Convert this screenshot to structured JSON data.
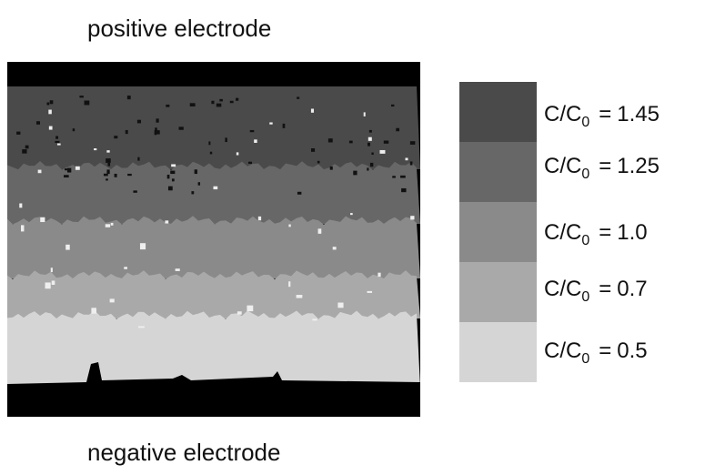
{
  "top_label": "positive electrode",
  "bottom_label": "negative electrode",
  "legend": {
    "items": [
      {
        "numerator": "C/C",
        "subscript": "0",
        "equals": "=",
        "value": "1.45",
        "color": "#4a4a4a"
      },
      {
        "numerator": "C/C",
        "subscript": "0",
        "equals": "=",
        "value": "1.25",
        "color": "#676767"
      },
      {
        "numerator": "C/C",
        "subscript": "0",
        "equals": "=",
        "value": "1.0",
        "color": "#8a8a8a"
      },
      {
        "numerator": "C/C",
        "subscript": "0",
        "equals": "=",
        "value": "0.7",
        "color": "#a9a9a9"
      },
      {
        "numerator": "C/C",
        "subscript": "0",
        "equals": "=",
        "value": "0.5",
        "color": "#d5d5d5"
      }
    ]
  }
}
